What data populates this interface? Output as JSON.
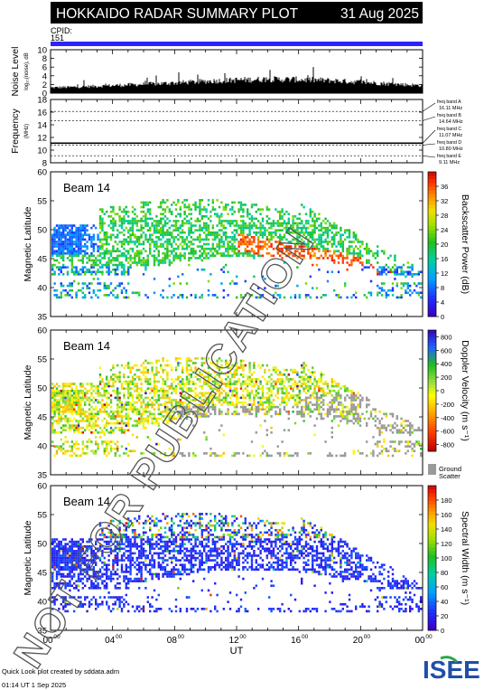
{
  "header": {
    "title": "HOKKAIDO RADAR SUMMARY PLOT",
    "date": "31 Aug 2025",
    "cpid_label": "CPID:",
    "cpid_value": "151"
  },
  "footer": {
    "credit": "Quick Look plot created by sddata.adm",
    "timestamp": "01:14 UT  1 Sep 2025",
    "logo_text": "ISEE"
  },
  "watermark": "NOT FOR PUBLICATION",
  "colors": {
    "title_bg": "#000000",
    "cpid_bar": "#2b22ff",
    "ground_scatter": "#9a9a9a",
    "logo_green": "#2aa84a",
    "logo_blue": "#1f4fa8"
  },
  "chart_data": [
    {
      "type": "area",
      "name": "noise",
      "ylabel": "Noise Level",
      "ylabel_sub": "log₁₀(noise), dB",
      "ylim": [
        0,
        10
      ],
      "yticks": [
        "0",
        "2",
        "4",
        "6",
        "8",
        "10"
      ],
      "x_hours": [
        0,
        2,
        4,
        6,
        8,
        10,
        12,
        14,
        16,
        18,
        20,
        22,
        24
      ],
      "values": [
        1.3,
        1.5,
        1.8,
        2.1,
        2.4,
        2.8,
        3.1,
        3.3,
        3.2,
        3.0,
        2.6,
        2.2,
        1.8
      ]
    },
    {
      "type": "line",
      "name": "frequency",
      "ylabel": "Frequency",
      "ylabel_sub": "(MHz)",
      "ylim": [
        8,
        18
      ],
      "yticks": [
        "8",
        "10",
        "12",
        "14",
        "16",
        "18"
      ],
      "value_mhz": 11.1,
      "bands": [
        {
          "label": "freq band A",
          "value": "16.11 MHz",
          "mhz": 16.11
        },
        {
          "label": "freq band B",
          "value": "14.64 MHz",
          "mhz": 14.64
        },
        {
          "label": "freq band C",
          "value": "11.07 MHz",
          "mhz": 11.07
        },
        {
          "label": "freq band D",
          "value": "10.80 MHz",
          "mhz": 10.8
        },
        {
          "label": "freq band E",
          "value": "9.11 MHz",
          "mhz": 9.11
        }
      ]
    },
    {
      "type": "heatmap",
      "name": "power",
      "beam": "Beam 14",
      "ylabel": "Magnetic Latitude",
      "ylim": [
        35,
        60
      ],
      "yticks": [
        "35",
        "40",
        "45",
        "50",
        "55",
        "60"
      ],
      "colorbar_label": "Backscatter Power (dB)",
      "colorbar_ticks": [
        "0",
        "4",
        "8",
        "12",
        "16",
        "20",
        "24",
        "28",
        "32",
        "36"
      ],
      "colorbar_range": [
        0,
        40
      ]
    },
    {
      "type": "heatmap",
      "name": "velocity",
      "beam": "Beam 14",
      "ylabel": "Magnetic Latitude",
      "ylim": [
        35,
        60
      ],
      "yticks": [
        "35",
        "40",
        "45",
        "50",
        "55",
        "60"
      ],
      "colorbar_label": "Doppler Velocity (m s⁻¹)",
      "colorbar_ticks": [
        "800",
        "600",
        "400",
        "200",
        "0",
        "-200",
        "-400",
        "-600",
        "-800"
      ],
      "colorbar_range": [
        -900,
        900
      ],
      "ground_scatter_label": [
        "Ground",
        "Scatter"
      ]
    },
    {
      "type": "heatmap",
      "name": "width",
      "beam": "Beam 14",
      "ylabel": "Magnetic Latitude",
      "ylim": [
        35,
        60
      ],
      "yticks": [
        "35",
        "40",
        "45",
        "50",
        "55",
        "60"
      ],
      "colorbar_label": "Spectral Width (m s⁻¹)",
      "colorbar_ticks": [
        "0",
        "20",
        "40",
        "60",
        "80",
        "100",
        "120",
        "140",
        "160",
        "180"
      ],
      "colorbar_range": [
        0,
        200
      ]
    }
  ],
  "xaxis": {
    "label": "UT",
    "ticks": [
      {
        "h": 0,
        "text": "00",
        "sup": "00"
      },
      {
        "h": 4,
        "text": "04",
        "sup": "00"
      },
      {
        "h": 8,
        "text": "08",
        "sup": "00"
      },
      {
        "h": 12,
        "text": "12",
        "sup": "00"
      },
      {
        "h": 16,
        "text": "16",
        "sup": "00"
      },
      {
        "h": 20,
        "text": "20",
        "sup": "00"
      },
      {
        "h": 24,
        "text": "00",
        "sup": "00"
      }
    ]
  }
}
